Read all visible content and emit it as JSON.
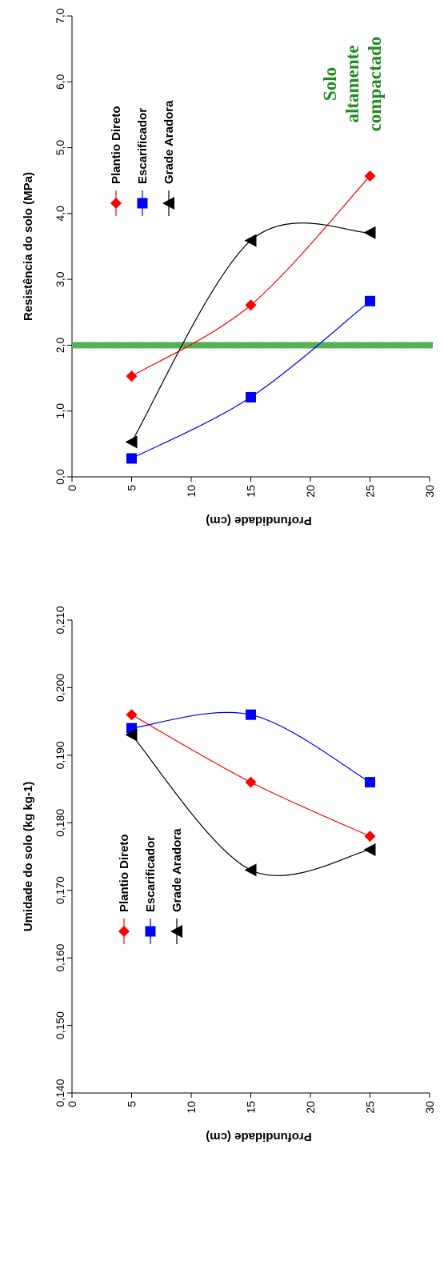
{
  "chart_data": [
    {
      "type": "line",
      "ylabel": "Resistência do solo (MPa)",
      "xlabel": "Profundidade (cm)",
      "xlim": [
        0,
        30
      ],
      "ylim": [
        0,
        7
      ],
      "xticks": [
        "0",
        "5",
        "10",
        "15",
        "20",
        "25",
        "30"
      ],
      "yticks": [
        "0,0",
        "1,0",
        "2,0",
        "3,0",
        "4,0",
        "5,0",
        "6,0",
        "7,0"
      ],
      "x": [
        5,
        15,
        25
      ],
      "series": [
        {
          "name": "Plantio Direto",
          "color": "#ff0000",
          "marker": "diamond",
          "values": [
            1.53,
            2.61,
            4.57
          ]
        },
        {
          "name": "Escarificador",
          "color": "#0000ff",
          "marker": "square",
          "values": [
            0.28,
            1.21,
            2.67
          ]
        },
        {
          "name": "Grade Aradora",
          "color": "#000000",
          "marker": "triangle",
          "values": [
            0.53,
            3.59,
            3.71
          ]
        }
      ],
      "reference_line": {
        "value": 2.0,
        "color": "#3aa33a"
      },
      "annotation": {
        "lines": [
          "Solo",
          "altamente",
          "compactado"
        ],
        "color": "#1e8c1e"
      },
      "legend_position": "top-left",
      "grid": false
    },
    {
      "type": "line",
      "ylabel": "Umidade do solo (kg kg-1)",
      "xlabel": "Profundidade (cm)",
      "xlim": [
        0,
        30
      ],
      "ylim": [
        0.14,
        0.21
      ],
      "xticks": [
        "0",
        "5",
        "10",
        "15",
        "20",
        "25",
        "30"
      ],
      "yticks": [
        "0,140",
        "0,150",
        "0,160",
        "0,170",
        "0,180",
        "0,190",
        "0,200",
        "0,210"
      ],
      "x": [
        5,
        15,
        25
      ],
      "series": [
        {
          "name": "Plantio Direto",
          "color": "#ff0000",
          "marker": "diamond",
          "values": [
            0.196,
            0.186,
            0.178
          ]
        },
        {
          "name": "Escarificador",
          "color": "#0000ff",
          "marker": "square",
          "values": [
            0.194,
            0.196,
            0.186
          ]
        },
        {
          "name": "Grade Aradora",
          "color": "#000000",
          "marker": "triangle",
          "values": [
            0.193,
            0.173,
            0.176
          ]
        }
      ],
      "legend_position": "top-left",
      "grid": false
    }
  ]
}
